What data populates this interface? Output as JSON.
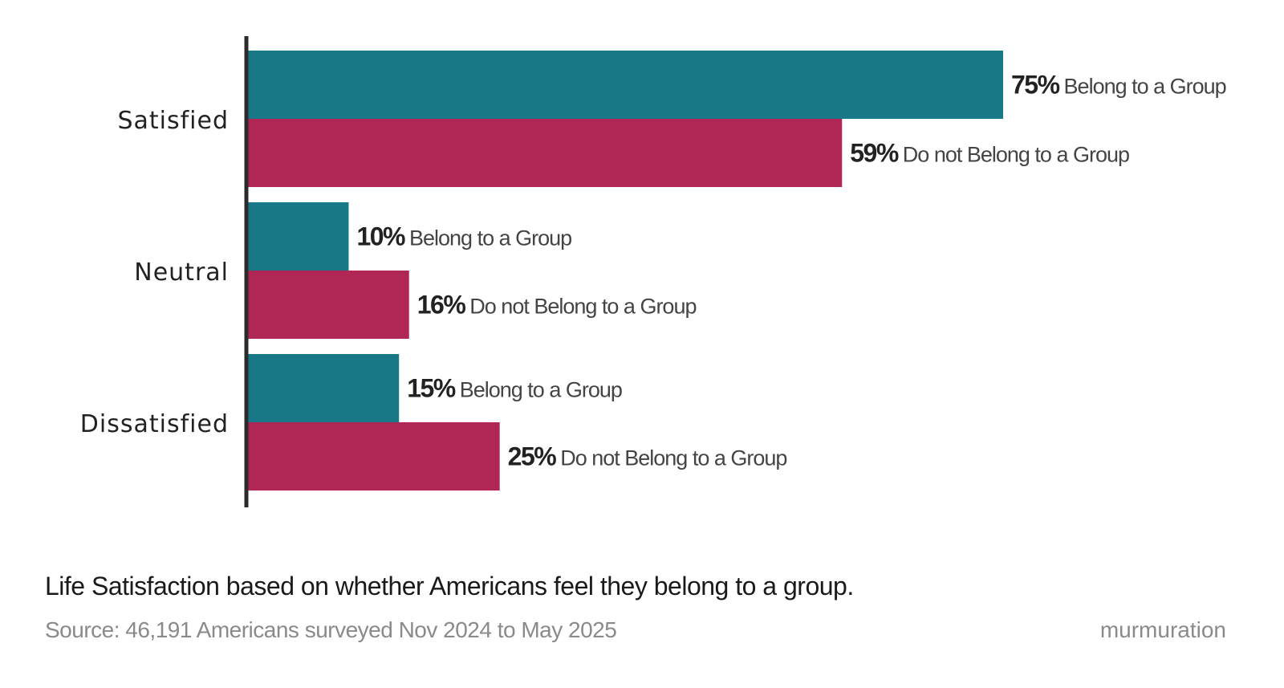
{
  "chart_data": {
    "type": "bar",
    "orientation": "horizontal",
    "categories": [
      "Satisfied",
      "Neutral",
      "Dissatisfied"
    ],
    "series": [
      {
        "name": "Belong to a Group",
        "color": "#187888",
        "values": [
          75,
          10,
          15
        ]
      },
      {
        "name": "Do not Belong to a Group",
        "color": "#b02756",
        "values": [
          59,
          16,
          25
        ]
      }
    ],
    "value_suffix": "%",
    "xlim": [
      0,
      100
    ],
    "grid": false,
    "legend": "inline-labels",
    "title": "Life Satisfaction based on whether Americans feel they belong to a group.",
    "source": "Source: 46,191 Americans surveyed Nov 2024 to May 2025"
  },
  "brand": "murmuration"
}
